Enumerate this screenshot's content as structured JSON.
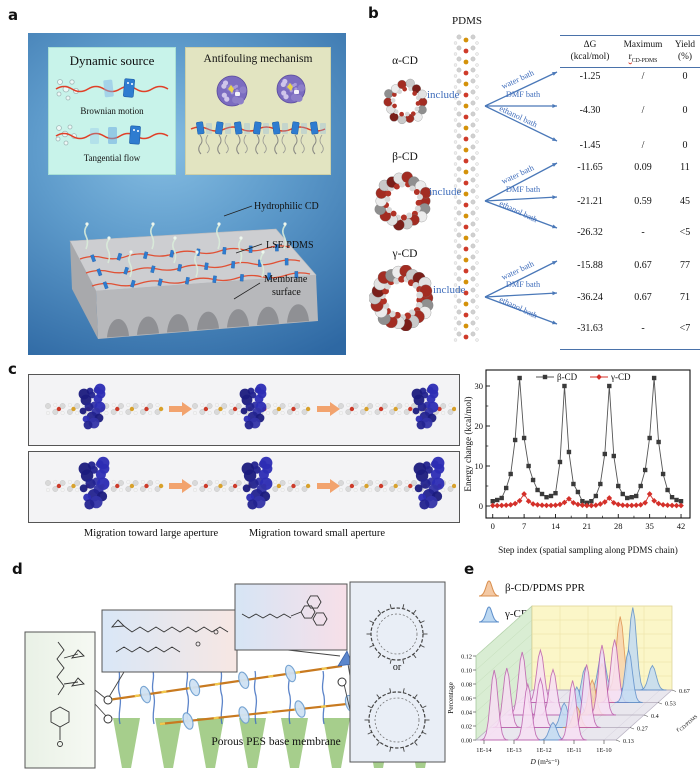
{
  "fig": {
    "panel_labels": {
      "a": "a",
      "b": "b",
      "c": "c",
      "d": "d",
      "e": "e"
    },
    "a": {
      "dynamic_title": "Dynamic source",
      "brownian_caption": "Brownian motion",
      "tangential_caption": "Tangential flow",
      "antifouling_title": "Antifouling mechanism",
      "label_hydrophilic": "Hydrophilic CD",
      "label_lse": "LSE PDMS",
      "label_membrane_1": "Membrane",
      "label_membrane_2": "surface"
    },
    "b": {
      "pdms": "PDMS",
      "include": "include",
      "cd_alpha": "α-CD",
      "cd_beta": "β-CD",
      "cd_gamma": "γ-CD",
      "header": {
        "c1l1": "ΔG",
        "c1l2": "(kcal/mol)",
        "c2l1": "Maximum",
        "c2l2_main": "r",
        "c2l2_sub": "CD-PDMS",
        "c3l1": "Yield",
        "c3l2": "(%)"
      },
      "rows": [
        {
          "bath": "water bath",
          "dg": "-1.25",
          "r": "/",
          "y": "0"
        },
        {
          "bath": "DMF bath",
          "dg": "-4.30",
          "r": "/",
          "y": "0"
        },
        {
          "bath": "ethanol bath",
          "dg": "-1.45",
          "r": "/",
          "y": "0"
        },
        {
          "bath": "water bath",
          "dg": "-11.65",
          "r": "0.09",
          "y": "11"
        },
        {
          "bath": "DMF bath",
          "dg": "-21.21",
          "r": "0.59",
          "y": "45"
        },
        {
          "bath": "ethanol bath",
          "dg": "-26.32",
          "r": "-",
          "y": "<5"
        },
        {
          "bath": "water bath",
          "dg": "-15.88",
          "r": "0.67",
          "y": "77"
        },
        {
          "bath": "DMF bath",
          "dg": "-36.24",
          "r": "0.67",
          "y": "71"
        },
        {
          "bath": "ethanol bath",
          "dg": "-31.63",
          "r": "-",
          "y": "<7"
        }
      ]
    },
    "c": {
      "caption_large": "Migration toward large aperture",
      "caption_small": "Migration toward small aperture"
    },
    "d": {
      "or": "or",
      "membrane": "Porous PES base membrane"
    },
    "e": {
      "legend": [
        {
          "label": "β-CD/PDMS PPR"
        },
        {
          "label": "γ-CD/PDMS PPR"
        }
      ]
    }
  },
  "chart_data": [
    {
      "id": "energy-profile",
      "type": "line",
      "title": "",
      "xlabel": "Step index (spatial sampling along PDMS chain)",
      "ylabel": "Energy change (kcal/mol)",
      "xlim": [
        -1.5,
        44
      ],
      "ylim": [
        -3,
        34
      ],
      "xticks": [
        0,
        7,
        14,
        21,
        28,
        35,
        42
      ],
      "yticks": [
        0,
        10,
        20,
        30
      ],
      "legend_position": "top",
      "grid": false,
      "series": [
        {
          "name": "β-CD",
          "color": "#3a3a3a",
          "marker": "square",
          "values": [
            1.2,
            1.5,
            2.0,
            4.5,
            8.0,
            16.5,
            32.0,
            17.0,
            10.0,
            6.5,
            4.0,
            3.0,
            2.2,
            2.5,
            3.2,
            11.0,
            30.0,
            13.5,
            5.5,
            3.5,
            1.2,
            0.8,
            1.2,
            2.5,
            5.5,
            13.0,
            30.0,
            12.5,
            5.0,
            3.0,
            2.0,
            2.2,
            2.5,
            5.0,
            9.0,
            17.0,
            32.0,
            16.0,
            8.0,
            4.0,
            2.2,
            1.5,
            1.2
          ]
        },
        {
          "name": "γ-CD",
          "color": "#d4302a",
          "marker": "diamond",
          "values": [
            0.1,
            0.1,
            0.15,
            0.2,
            0.3,
            0.6,
            1.3,
            3.0,
            1.2,
            0.5,
            0.3,
            0.2,
            0.15,
            0.15,
            0.2,
            0.4,
            0.9,
            1.8,
            0.8,
            0.4,
            0.2,
            0.1,
            0.1,
            0.2,
            0.5,
            1.0,
            2.0,
            0.8,
            0.4,
            0.2,
            0.15,
            0.15,
            0.2,
            0.3,
            0.8,
            3.0,
            1.3,
            0.6,
            0.3,
            0.2,
            0.15,
            0.1,
            0.1
          ]
        }
      ]
    },
    {
      "id": "ppr-distribution",
      "type": "3d-ridge",
      "xlabel_main": "D",
      "xlabel_rest": "(m²s⁻¹)",
      "ylabel": "Percentage",
      "zlabel_main": "r",
      "zlabel_sub": "CD/PDMS",
      "xticks": [
        "1E-14",
        "1E-13",
        "1E-12",
        "1E-11",
        "1E-10"
      ],
      "yticks": [
        "0.00",
        "0.02",
        "0.04",
        "0.06",
        "0.08",
        "0.10",
        "0.12"
      ],
      "zticks": [
        "0.13",
        "0.27",
        "0.4",
        "0.53",
        "0.67"
      ],
      "ylim": [
        0,
        0.12
      ],
      "rows": [
        {
          "r": "0.13",
          "peaks": [
            {
              "x": 0.13,
              "h": 0.1,
              "c": "pink"
            },
            {
              "x": 0.37,
              "h": 0.08,
              "c": "pink"
            },
            {
              "x": 0.55,
              "h": 0.025,
              "c": "blue"
            },
            {
              "x": 0.69,
              "h": 0.085,
              "c": "pink"
            }
          ]
        },
        {
          "r": "0.27",
          "peaks": [
            {
              "x": 0.12,
              "h": 0.085,
              "c": "pink"
            },
            {
              "x": 0.36,
              "h": 0.07,
              "c": "pink"
            },
            {
              "x": 0.53,
              "h": 0.035,
              "c": "blue"
            },
            {
              "x": 0.62,
              "h": 0.03,
              "c": "orange"
            },
            {
              "x": 0.69,
              "h": 0.09,
              "c": "pink"
            }
          ]
        },
        {
          "r": "0.4",
          "peaks": [
            {
              "x": 0.13,
              "h": 0.09,
              "c": "pink"
            },
            {
              "x": 0.35,
              "h": 0.065,
              "c": "pink"
            },
            {
              "x": 0.52,
              "h": 0.04,
              "c": "blue"
            },
            {
              "x": 0.63,
              "h": 0.05,
              "c": "orange"
            },
            {
              "x": 0.7,
              "h": 0.1,
              "c": "pink"
            }
          ]
        },
        {
          "r": "0.53",
          "peaks": [
            {
              "x": 0.16,
              "h": 0.075,
              "c": "pink"
            },
            {
              "x": 0.48,
              "h": 0.05,
              "c": "blue"
            },
            {
              "x": 0.6,
              "h": 0.055,
              "c": "orange"
            },
            {
              "x": 0.69,
              "h": 0.09,
              "c": "pink"
            },
            {
              "x": 0.79,
              "h": 0.075,
              "c": "blue"
            }
          ]
        },
        {
          "r": "0.67",
          "peaks": [
            {
              "x": 0.5,
              "h": 0.055,
              "c": "blue"
            },
            {
              "x": 0.63,
              "h": 0.105,
              "c": "orange"
            },
            {
              "x": 0.72,
              "h": 0.118,
              "c": "blue"
            },
            {
              "x": 0.86,
              "h": 0.035,
              "c": "blue"
            }
          ]
        }
      ]
    }
  ]
}
